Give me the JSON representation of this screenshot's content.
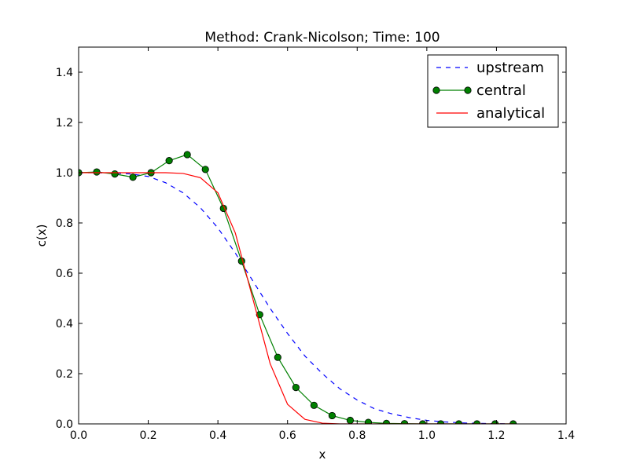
{
  "chart_data": {
    "type": "line",
    "title": "Method: Crank-Nicolson; Time: 100",
    "xlabel": "x",
    "ylabel": "c(x)",
    "xlim": [
      0.0,
      1.4
    ],
    "ylim": [
      0.0,
      1.5
    ],
    "xticks": [
      "0.0",
      "0.2",
      "0.4",
      "0.6",
      "0.8",
      "1.0",
      "1.2",
      "1.4"
    ],
    "yticks": [
      "0.0",
      "0.2",
      "0.4",
      "0.6",
      "0.8",
      "1.0",
      "1.2",
      "1.4"
    ],
    "legend_position": "top-right",
    "series": [
      {
        "name": "upstream",
        "style": "dashed",
        "color": "#0000ff",
        "x": [
          0.0,
          0.05,
          0.1,
          0.15,
          0.2,
          0.25,
          0.3,
          0.35,
          0.4,
          0.45,
          0.5,
          0.55,
          0.6,
          0.65,
          0.7,
          0.75,
          0.8,
          0.85,
          0.9,
          0.95,
          1.0,
          1.05,
          1.1,
          1.15,
          1.2,
          1.25
        ],
        "y": [
          1.0,
          1.0,
          0.998,
          0.995,
          0.985,
          0.96,
          0.92,
          0.86,
          0.78,
          0.68,
          0.57,
          0.46,
          0.36,
          0.27,
          0.2,
          0.14,
          0.095,
          0.06,
          0.04,
          0.025,
          0.014,
          0.008,
          0.004,
          0.002,
          0.001,
          0.0
        ]
      },
      {
        "name": "central",
        "style": "solid-markers",
        "color": "#008000",
        "x": [
          0.0,
          0.052,
          0.104,
          0.156,
          0.208,
          0.26,
          0.312,
          0.364,
          0.416,
          0.468,
          0.52,
          0.572,
          0.624,
          0.676,
          0.728,
          0.78,
          0.832,
          0.884,
          0.936,
          0.988,
          1.04,
          1.092,
          1.144,
          1.196,
          1.248
        ],
        "y": [
          1.0,
          1.003,
          0.995,
          0.982,
          1.0,
          1.048,
          1.072,
          1.013,
          0.858,
          0.648,
          0.435,
          0.265,
          0.145,
          0.074,
          0.033,
          0.014,
          0.006,
          0.002,
          0.001,
          0.0,
          0.0,
          0.0,
          0.0,
          0.0,
          0.0
        ]
      },
      {
        "name": "analytical",
        "style": "solid",
        "color": "#ff0000",
        "x": [
          0.0,
          0.05,
          0.1,
          0.15,
          0.2,
          0.25,
          0.3,
          0.35,
          0.4,
          0.45,
          0.5,
          0.55,
          0.6,
          0.65,
          0.7,
          0.75,
          0.8,
          0.85,
          0.9,
          0.95,
          1.0,
          1.05,
          1.1,
          1.15,
          1.2,
          1.25
        ],
        "y": [
          1.0,
          1.0,
          1.0,
          1.0,
          1.0,
          1.0,
          0.997,
          0.98,
          0.92,
          0.76,
          0.5,
          0.24,
          0.078,
          0.018,
          0.003,
          0.0,
          0.0,
          0.0,
          0.0,
          0.0,
          0.0,
          0.0,
          0.0,
          0.0,
          0.0,
          0.0
        ]
      }
    ]
  }
}
